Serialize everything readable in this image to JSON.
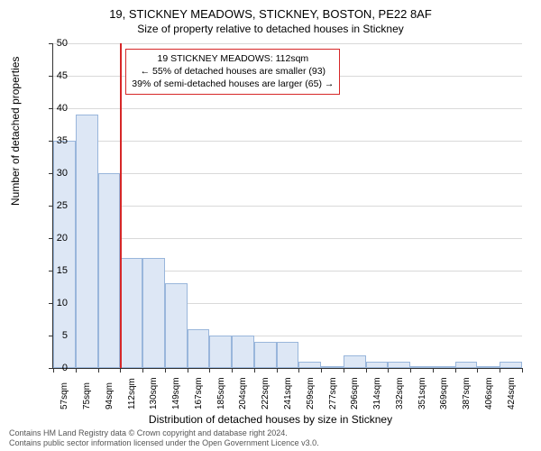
{
  "title_main": "19, STICKNEY MEADOWS, STICKNEY, BOSTON, PE22 8AF",
  "title_sub": "Size of property relative to detached houses in Stickney",
  "ylabel": "Number of detached properties",
  "xlabel": "Distribution of detached houses by size in Stickney",
  "footer_line1": "Contains HM Land Registry data © Crown copyright and database right 2024.",
  "footer_line2": "Contains public sector information licensed under the Open Government Licence v3.0.",
  "annotation": {
    "line1": "19 STICKNEY MEADOWS: 112sqm",
    "line2": "← 55% of detached houses are smaller (93)",
    "line3": "39% of semi-detached houses are larger (65) →"
  },
  "chart": {
    "type": "histogram",
    "ylim": [
      0,
      50
    ],
    "ytick_step": 5,
    "bar_fill": "#dde7f5",
    "bar_border": "#99b6db",
    "grid_color": "#d9d9d9",
    "marker_color": "#d62728",
    "marker_x_label": "112sqm",
    "categories": [
      "57sqm",
      "75sqm",
      "94sqm",
      "112sqm",
      "130sqm",
      "149sqm",
      "167sqm",
      "185sqm",
      "204sqm",
      "222sqm",
      "241sqm",
      "259sqm",
      "277sqm",
      "296sqm",
      "314sqm",
      "332sqm",
      "351sqm",
      "369sqm",
      "387sqm",
      "406sqm",
      "424sqm"
    ],
    "values": [
      35,
      39,
      30,
      17,
      17,
      13,
      6,
      5,
      5,
      4,
      4,
      1,
      0,
      2,
      1,
      1,
      0,
      0,
      1,
      0,
      1
    ],
    "title_fontsize": 13,
    "label_fontsize": 12,
    "tick_fontsize": 11
  }
}
